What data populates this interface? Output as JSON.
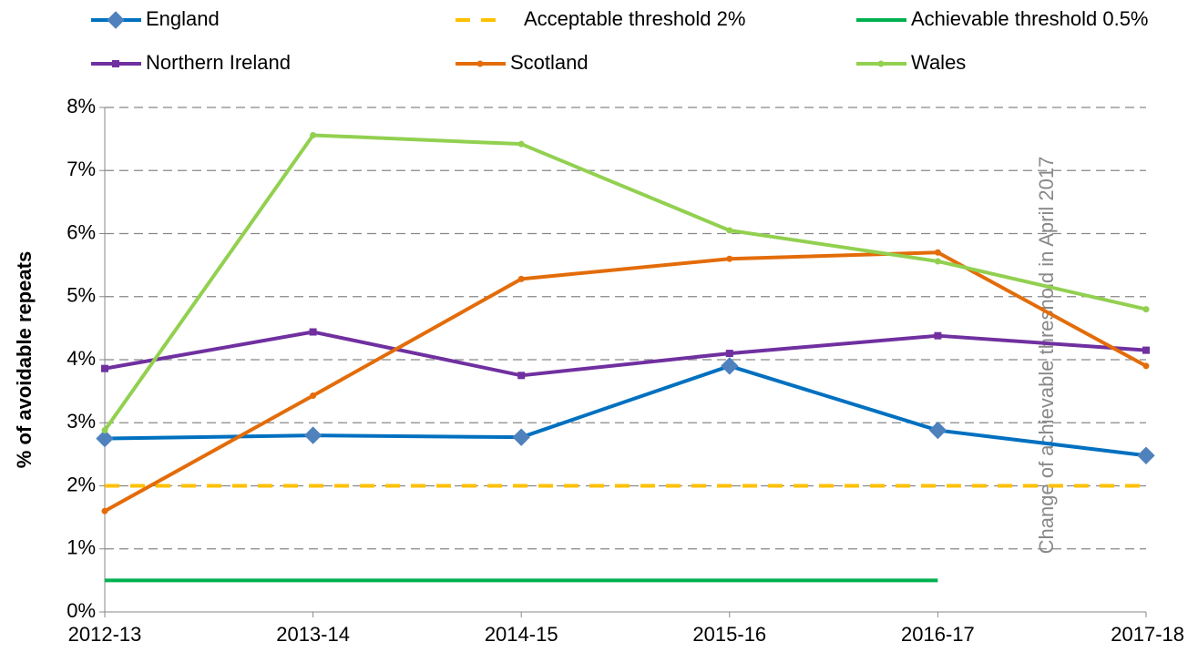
{
  "chart_data": {
    "type": "line",
    "ylabel": "% of avoidable repeats",
    "annotation": "Change of achievable threshold in April 2017",
    "categories": [
      "2012-13",
      "2013-14",
      "2014-15",
      "2015-16",
      "2016-17",
      "2017-18"
    ],
    "series": [
      {
        "name": "England",
        "color": "#0070c0",
        "marker": "diamond",
        "values": [
          2.75,
          2.8,
          2.77,
          3.9,
          2.88,
          2.48
        ]
      },
      {
        "name": "Acceptable threshold  2%",
        "color": "#ffc000",
        "dash": true,
        "values": [
          2,
          2,
          2,
          2,
          2,
          2
        ]
      },
      {
        "name": "Achievable threshold 0.5%",
        "color": "#00b050",
        "values": [
          0.5,
          0.5,
          0.5,
          0.5,
          0.5,
          null
        ]
      },
      {
        "name": "Northern Ireland",
        "color": "#7030a0",
        "marker": "square",
        "values": [
          3.86,
          4.44,
          3.75,
          4.1,
          4.38,
          4.15
        ]
      },
      {
        "name": "Scotland",
        "color": "#e36c09",
        "marker": "circle",
        "values": [
          1.6,
          3.43,
          5.28,
          5.6,
          5.7,
          3.9
        ]
      },
      {
        "name": "Wales",
        "color": "#92d050",
        "marker": "circle",
        "values": [
          2.88,
          7.56,
          7.42,
          6.05,
          5.56,
          4.8
        ]
      }
    ],
    "ylim": [
      0,
      8
    ],
    "yticks": [
      {
        "value": 0,
        "label": "0%"
      },
      {
        "value": 1,
        "label": "1%"
      },
      {
        "value": 2,
        "label": "2%"
      },
      {
        "value": 3,
        "label": "3%"
      },
      {
        "value": 4,
        "label": "4%"
      },
      {
        "value": 5,
        "label": "5%"
      },
      {
        "value": 6,
        "label": "6%"
      },
      {
        "value": 7,
        "label": "7%"
      },
      {
        "value": 8,
        "label": "8%"
      }
    ],
    "grid": true
  }
}
